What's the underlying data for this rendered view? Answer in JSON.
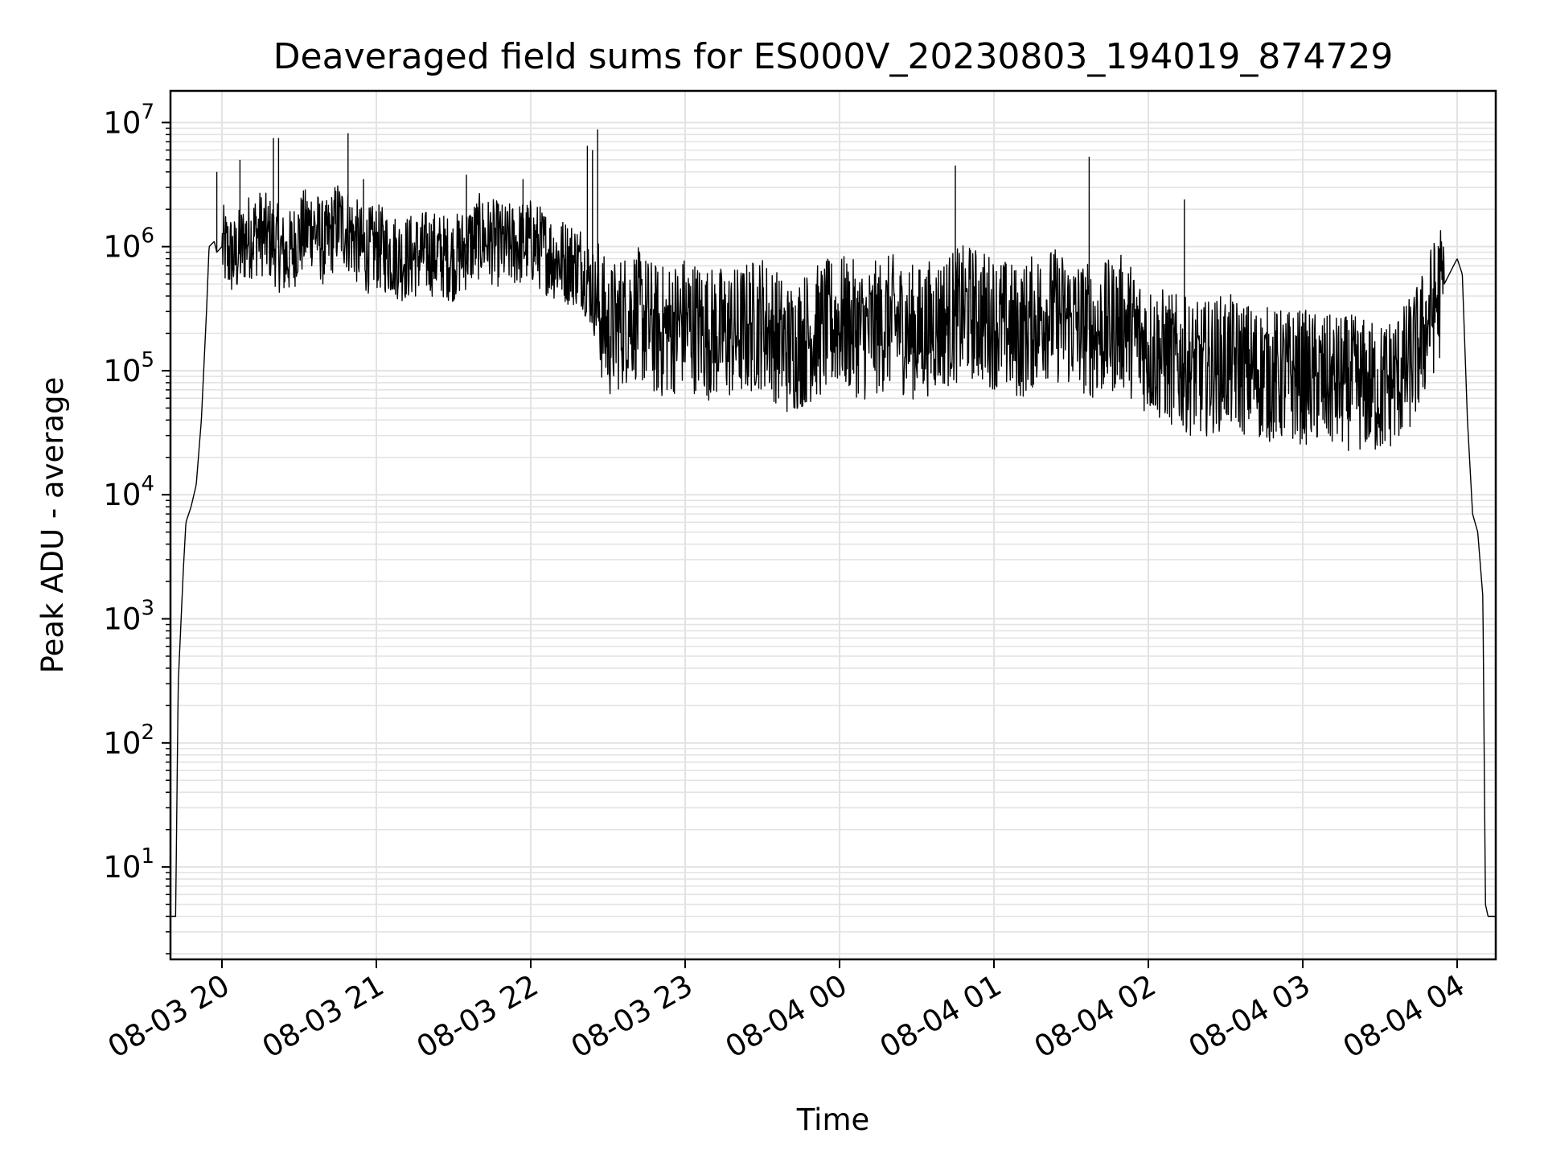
{
  "chart_data": {
    "type": "line",
    "title": "Deaveraged field sums for ES000V_20230803_194019_874729",
    "xlabel": "Time",
    "ylabel": "Peak ADU - average",
    "yscale": "log",
    "ylim": [
      1.8,
      18000000
    ],
    "xlim": [
      "08-03 19:40",
      "08-04 04:15"
    ],
    "grid": true,
    "line_color": "#000000",
    "grid_color": "#e3e3e3",
    "x_ticks": [
      "08-03 20",
      "08-03 21",
      "08-03 22",
      "08-03 23",
      "08-04 00",
      "08-04 01",
      "08-04 02",
      "08-04 03",
      "08-04 04"
    ],
    "y_ticks": [
      {
        "base": "10",
        "exp": "1",
        "value": 10
      },
      {
        "base": "10",
        "exp": "2",
        "value": 100
      },
      {
        "base": "10",
        "exp": "3",
        "value": 1000
      },
      {
        "base": "10",
        "exp": "4",
        "value": 10000
      },
      {
        "base": "10",
        "exp": "5",
        "value": 100000
      },
      {
        "base": "10",
        "exp": "6",
        "value": 1000000
      },
      {
        "base": "10",
        "exp": "7",
        "value": 10000000
      }
    ],
    "series": [
      {
        "x": [
          "08-03 19:40",
          "08-03 19:42",
          "08-03 19:43",
          "08-03 19:45",
          "08-03 19:46",
          "08-03 19:48",
          "08-03 19:50",
          "08-03 19:52",
          "08-03 19:54",
          "08-03 19:55",
          "08-03 19:57",
          "08-03 19:58",
          "08-03 20:00",
          "08-03 20:05",
          "08-03 20:10",
          "08-03 20:15",
          "08-03 20:20",
          "08-03 20:25",
          "08-03 20:30",
          "08-03 20:35",
          "08-03 20:40",
          "08-03 20:45",
          "08-03 20:50",
          "08-03 20:55",
          "08-03 21:00",
          "08-03 21:10",
          "08-03 21:20",
          "08-03 21:30",
          "08-03 21:40",
          "08-03 21:50",
          "08-03 22:00",
          "08-03 22:10",
          "08-03 22:20",
          "08-03 22:25",
          "08-03 22:30",
          "08-03 22:35",
          "08-03 22:40",
          "08-03 22:50",
          "08-03 23:00",
          "08-03 23:10",
          "08-03 23:20",
          "08-03 23:30",
          "08-03 23:40",
          "08-03 23:50",
          "08-04 00:00",
          "08-04 00:10",
          "08-04 00:20",
          "08-04 00:30",
          "08-04 00:40",
          "08-04 00:50",
          "08-04 01:00",
          "08-04 01:10",
          "08-04 01:20",
          "08-04 01:30",
          "08-04 01:40",
          "08-04 01:50",
          "08-04 02:00",
          "08-04 02:10",
          "08-04 02:20",
          "08-04 02:30",
          "08-04 02:40",
          "08-04 02:50",
          "08-04 03:00",
          "08-04 03:10",
          "08-04 03:20",
          "08-04 03:30",
          "08-04 03:40",
          "08-04 03:45",
          "08-04 03:50",
          "08-04 03:55",
          "08-04 04:00",
          "08-04 04:02",
          "08-04 04:04",
          "08-04 04:06",
          "08-04 04:08",
          "08-04 04:10",
          "08-04 04:11",
          "08-04 04:12",
          "08-04 04:15"
        ],
        "y": [
          4,
          4,
          300,
          2500,
          6000,
          8000,
          12000,
          40000,
          300000,
          1000000,
          1100000,
          900000,
          1000000,
          800000,
          1200000,
          1300000,
          1100000,
          800000,
          1200000,
          1500000,
          1000000,
          1600000,
          1300000,
          900000,
          1000000,
          800000,
          900000,
          800000,
          1200000,
          1000000,
          1100000,
          800000,
          700000,
          400000,
          200000,
          250000,
          300000,
          200000,
          250000,
          200000,
          200000,
          250000,
          150000,
          200000,
          250000,
          200000,
          250000,
          200000,
          250000,
          300000,
          250000,
          200000,
          300000,
          250000,
          200000,
          250000,
          150000,
          120000,
          100000,
          120000,
          100000,
          90000,
          90000,
          80000,
          80000,
          70000,
          100000,
          150000,
          300000,
          500000,
          800000,
          600000,
          40000,
          7000,
          5000,
          1500,
          5,
          4,
          4
        ],
        "spikes": [
          {
            "x": "08-03 19:58",
            "y": 4000000
          },
          {
            "x": "08-03 20:07",
            "y": 5000000
          },
          {
            "x": "08-03 20:20",
            "y": 7500000
          },
          {
            "x": "08-03 20:22",
            "y": 7500000
          },
          {
            "x": "08-03 20:49",
            "y": 8200000
          },
          {
            "x": "08-03 20:55",
            "y": 3500000
          },
          {
            "x": "08-03 21:35",
            "y": 3800000
          },
          {
            "x": "08-03 21:57",
            "y": 3500000
          },
          {
            "x": "08-03 22:22",
            "y": 6500000
          },
          {
            "x": "08-03 22:24",
            "y": 6000000
          },
          {
            "x": "08-03 22:26",
            "y": 8800000
          },
          {
            "x": "08-04 00:45",
            "y": 4500000
          },
          {
            "x": "08-04 01:37",
            "y": 5300000
          },
          {
            "x": "08-04 02:14",
            "y": 2400000
          }
        ]
      }
    ]
  }
}
